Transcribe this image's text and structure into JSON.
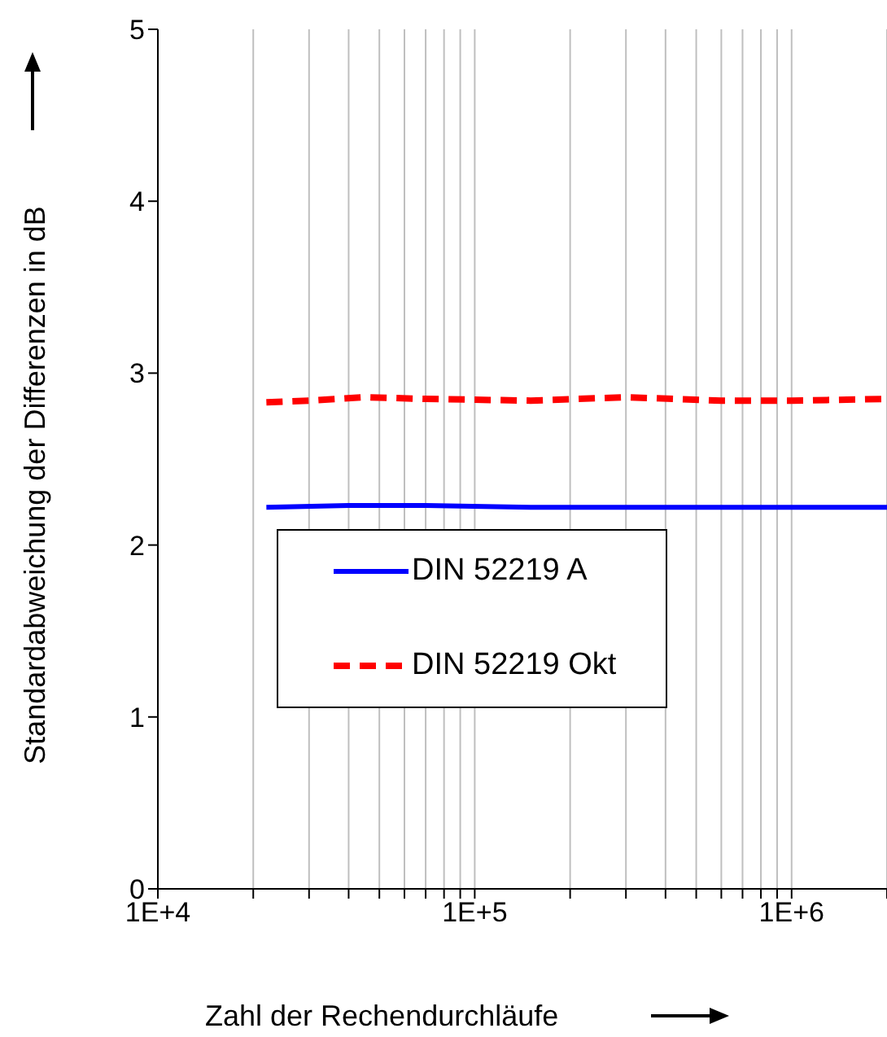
{
  "chart_data": {
    "type": "line",
    "xlabel": "Zahl der Rechendurchläufe",
    "ylabel": "Standardabweichung der Differenzen in dB",
    "log": "x",
    "xlim": [
      10000,
      2000000
    ],
    "xticks": [
      {
        "value": 10000,
        "label": "1E+4"
      },
      {
        "value": 20000,
        "label": null
      },
      {
        "value": 30000,
        "label": null
      },
      {
        "value": 40000,
        "label": null
      },
      {
        "value": 50000,
        "label": null
      },
      {
        "value": 60000,
        "label": null
      },
      {
        "value": 70000,
        "label": null
      },
      {
        "value": 80000,
        "label": null
      },
      {
        "value": 90000,
        "label": null
      },
      {
        "value": 100000,
        "label": "1E+5"
      },
      {
        "value": 200000,
        "label": null
      },
      {
        "value": 300000,
        "label": null
      },
      {
        "value": 400000,
        "label": null
      },
      {
        "value": 500000,
        "label": null
      },
      {
        "value": 600000,
        "label": null
      },
      {
        "value": 700000,
        "label": null
      },
      {
        "value": 800000,
        "label": null
      },
      {
        "value": 900000,
        "label": null
      },
      {
        "value": 1000000,
        "label": "1E+6"
      },
      {
        "value": 2000000,
        "label": null
      }
    ],
    "ylim": [
      0,
      5
    ],
    "yticks": [
      0,
      1,
      2,
      3,
      4,
      5
    ],
    "grid": "x",
    "legend": "bottom",
    "series": [
      {
        "name": "DIN 52219 A",
        "color": "#0000ff",
        "line_style": "solid",
        "x": [
          22000,
          40000,
          70000,
          150000,
          300000,
          600000,
          1000000,
          2000000
        ],
        "values": [
          2.22,
          2.23,
          2.23,
          2.22,
          2.22,
          2.22,
          2.22,
          2.22
        ]
      },
      {
        "name": "DIN 52219 Okt",
        "color": "#ff0000",
        "line_style": "dashed",
        "x": [
          22000,
          30000,
          45000,
          70000,
          150000,
          300000,
          600000,
          1000000,
          2000000
        ],
        "values": [
          2.83,
          2.84,
          2.86,
          2.85,
          2.84,
          2.86,
          2.84,
          2.84,
          2.85
        ]
      }
    ]
  }
}
